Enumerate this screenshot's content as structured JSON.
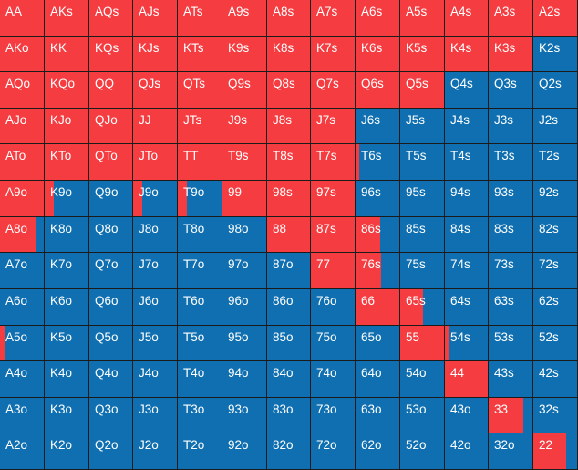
{
  "colors": {
    "raise": "#f53c40",
    "fold": "#0f6fb0",
    "gridline": "#1b1b1b"
  },
  "rows": [
    [
      [
        "AA",
        1
      ],
      [
        "AKs",
        1
      ],
      [
        "AQs",
        1
      ],
      [
        "AJs",
        1
      ],
      [
        "ATs",
        1
      ],
      [
        "A9s",
        1
      ],
      [
        "A8s",
        1
      ],
      [
        "A7s",
        1
      ],
      [
        "A6s",
        1
      ],
      [
        "A5s",
        1
      ],
      [
        "A4s",
        1
      ],
      [
        "A3s",
        1
      ],
      [
        "A2s",
        1
      ]
    ],
    [
      [
        "AKo",
        1
      ],
      [
        "KK",
        1
      ],
      [
        "KQs",
        1
      ],
      [
        "KJs",
        1
      ],
      [
        "KTs",
        1
      ],
      [
        "K9s",
        1
      ],
      [
        "K8s",
        1
      ],
      [
        "K7s",
        1
      ],
      [
        "K6s",
        1
      ],
      [
        "K5s",
        1
      ],
      [
        "K4s",
        1
      ],
      [
        "K3s",
        1
      ],
      [
        "K2s",
        0
      ]
    ],
    [
      [
        "AQo",
        1
      ],
      [
        "KQo",
        1
      ],
      [
        "QQ",
        1
      ],
      [
        "QJs",
        1
      ],
      [
        "QTs",
        1
      ],
      [
        "Q9s",
        1
      ],
      [
        "Q8s",
        1
      ],
      [
        "Q7s",
        1
      ],
      [
        "Q6s",
        1
      ],
      [
        "Q5s",
        1
      ],
      [
        "Q4s",
        0
      ],
      [
        "Q3s",
        0
      ],
      [
        "Q2s",
        0
      ]
    ],
    [
      [
        "AJo",
        1
      ],
      [
        "KJo",
        1
      ],
      [
        "QJo",
        1
      ],
      [
        "JJ",
        1
      ],
      [
        "JTs",
        1
      ],
      [
        "J9s",
        1
      ],
      [
        "J8s",
        1
      ],
      [
        "J7s",
        1
      ],
      [
        "J6s",
        0
      ],
      [
        "J5s",
        0
      ],
      [
        "J4s",
        0
      ],
      [
        "J3s",
        0
      ],
      [
        "J2s",
        0
      ]
    ],
    [
      [
        "ATo",
        1
      ],
      [
        "KTo",
        1
      ],
      [
        "QTo",
        1
      ],
      [
        "JTo",
        1
      ],
      [
        "TT",
        1
      ],
      [
        "T9s",
        1
      ],
      [
        "T8s",
        1
      ],
      [
        "T7s",
        1
      ],
      [
        "T6s",
        0.08
      ],
      [
        "T5s",
        0
      ],
      [
        "T4s",
        0
      ],
      [
        "T3s",
        0
      ],
      [
        "T2s",
        0
      ]
    ],
    [
      [
        "A9o",
        1
      ],
      [
        "K9o",
        0.2
      ],
      [
        "Q9o",
        0
      ],
      [
        "J9o",
        0.2
      ],
      [
        "T9o",
        0.2
      ],
      [
        "99",
        1
      ],
      [
        "98s",
        1
      ],
      [
        "97s",
        1
      ],
      [
        "96s",
        0
      ],
      [
        "95s",
        0
      ],
      [
        "94s",
        0
      ],
      [
        "93s",
        0
      ],
      [
        "92s",
        0
      ]
    ],
    [
      [
        "A8o",
        0.83
      ],
      [
        "K8o",
        0
      ],
      [
        "Q8o",
        0
      ],
      [
        "J8o",
        0
      ],
      [
        "T8o",
        0
      ],
      [
        "98o",
        0
      ],
      [
        "88",
        1
      ],
      [
        "87s",
        1
      ],
      [
        "86s",
        0.56
      ],
      [
        "85s",
        0
      ],
      [
        "84s",
        0
      ],
      [
        "83s",
        0
      ],
      [
        "82s",
        0
      ]
    ],
    [
      [
        "A7o",
        0
      ],
      [
        "K7o",
        0
      ],
      [
        "Q7o",
        0
      ],
      [
        "J7o",
        0
      ],
      [
        "T7o",
        0
      ],
      [
        "97o",
        0
      ],
      [
        "87o",
        0
      ],
      [
        "77",
        1
      ],
      [
        "76s",
        0.58
      ],
      [
        "75s",
        0
      ],
      [
        "74s",
        0
      ],
      [
        "73s",
        0
      ],
      [
        "72s",
        0
      ]
    ],
    [
      [
        "A6o",
        0
      ],
      [
        "K6o",
        0
      ],
      [
        "Q6o",
        0
      ],
      [
        "J6o",
        0
      ],
      [
        "T6o",
        0
      ],
      [
        "96o",
        0
      ],
      [
        "86o",
        0
      ],
      [
        "76o",
        0
      ],
      [
        "66",
        1
      ],
      [
        "65s",
        0.52
      ],
      [
        "64s",
        0
      ],
      [
        "63s",
        0
      ],
      [
        "62s",
        0
      ]
    ],
    [
      [
        "A5o",
        0.1
      ],
      [
        "K5o",
        0
      ],
      [
        "Q5o",
        0
      ],
      [
        "J5o",
        0
      ],
      [
        "T5o",
        0
      ],
      [
        "95o",
        0
      ],
      [
        "85o",
        0
      ],
      [
        "75o",
        0
      ],
      [
        "65o",
        0
      ],
      [
        "55",
        1
      ],
      [
        "54s",
        0.1
      ],
      [
        "53s",
        0
      ],
      [
        "52s",
        0
      ]
    ],
    [
      [
        "A4o",
        0
      ],
      [
        "K4o",
        0
      ],
      [
        "Q4o",
        0
      ],
      [
        "J4o",
        0
      ],
      [
        "T4o",
        0
      ],
      [
        "94o",
        0
      ],
      [
        "84o",
        0
      ],
      [
        "74o",
        0
      ],
      [
        "64o",
        0
      ],
      [
        "54o",
        0
      ],
      [
        "44",
        1
      ],
      [
        "43s",
        0
      ],
      [
        "42s",
        0
      ]
    ],
    [
      [
        "A3o",
        0
      ],
      [
        "K3o",
        0
      ],
      [
        "Q3o",
        0
      ],
      [
        "J3o",
        0
      ],
      [
        "T3o",
        0
      ],
      [
        "93o",
        0
      ],
      [
        "83o",
        0
      ],
      [
        "73o",
        0
      ],
      [
        "63o",
        0
      ],
      [
        "53o",
        0
      ],
      [
        "43o",
        0
      ],
      [
        "33",
        0.8
      ],
      [
        "32s",
        0
      ]
    ],
    [
      [
        "A2o",
        0
      ],
      [
        "K2o",
        0
      ],
      [
        "Q2o",
        0
      ],
      [
        "J2o",
        0
      ],
      [
        "T2o",
        0
      ],
      [
        "92o",
        0
      ],
      [
        "82o",
        0
      ],
      [
        "72o",
        0
      ],
      [
        "62o",
        0
      ],
      [
        "52o",
        0
      ],
      [
        "42o",
        0
      ],
      [
        "32o",
        0
      ],
      [
        "22",
        0.75
      ]
    ]
  ]
}
